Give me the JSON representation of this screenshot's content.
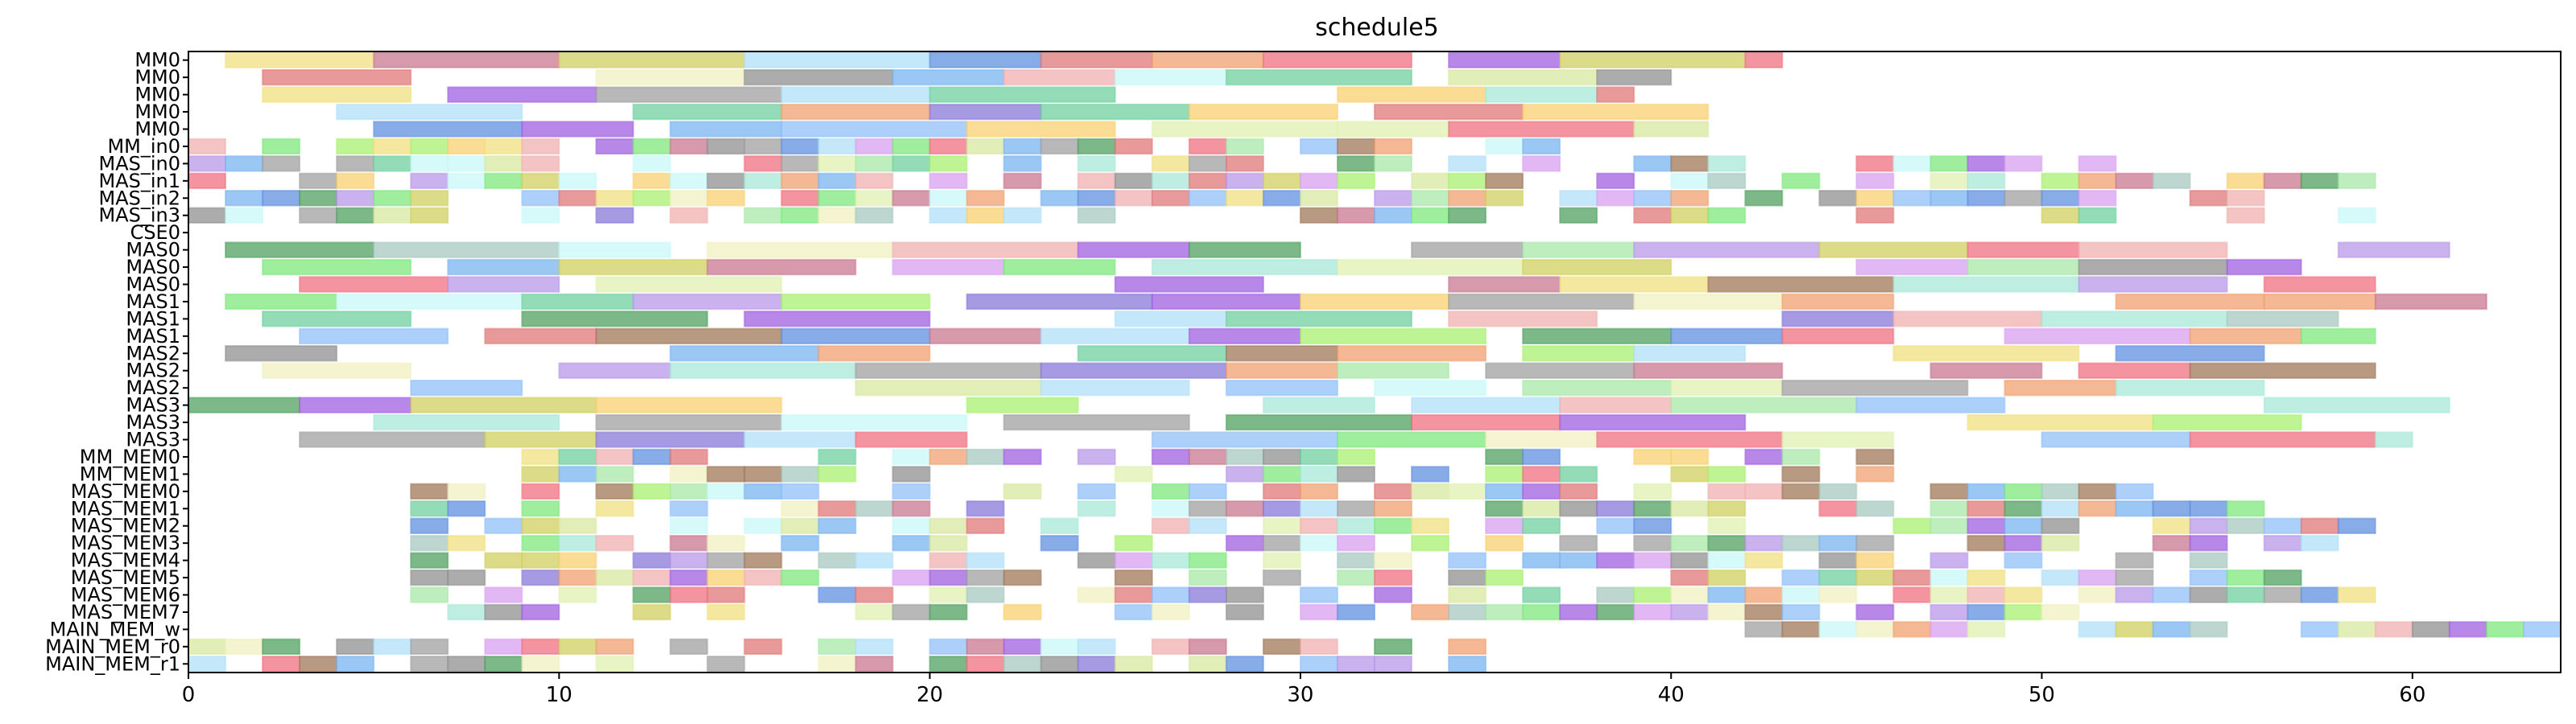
{
  "chart_data": {
    "type": "gantt",
    "title": "schedule5",
    "xlabel": "",
    "ylabel": "",
    "xlim": [
      0,
      64
    ],
    "x_ticks": [
      0,
      10,
      20,
      30,
      40,
      50,
      60
    ],
    "grid": false,
    "rows": [
      "MM0",
      "MM0",
      "MM0",
      "MM0",
      "MM0",
      "MM_in0",
      "MAS_in0",
      "MAS_in1",
      "MAS_in2",
      "MAS_in3",
      "CSE0",
      "MAS0",
      "MAS0",
      "MAS0",
      "MAS1",
      "MAS1",
      "MAS1",
      "MAS2",
      "MAS2",
      "MAS2",
      "MAS3",
      "MAS3",
      "MAS3",
      "MM_MEM0",
      "MM_MEM1",
      "MAS_MEM0",
      "MAS_MEM1",
      "MAS_MEM2",
      "MAS_MEM3",
      "MAS_MEM4",
      "MAS_MEM5",
      "MAS_MEM6",
      "MAS_MEM7",
      "MAIN_MEM_w",
      "MAIN_MEM_r0",
      "MAIN_MEM_r1"
    ],
    "palette": [
      "#7ee87e",
      "#a0785a",
      "#d8a0f0",
      "#7ab4f0",
      "#a8e8a8",
      "#c87890",
      "#8878d8",
      "#f0f0c0",
      "#f0b0b0",
      "#f8d070",
      "#90c0f8",
      "#a060e0",
      "#a8e8d8",
      "#a8f070",
      "#c8f8f8",
      "#d8e8a0",
      "#a8c8c0",
      "#b0e0f8",
      "#f0e080",
      "#b898e8",
      "#70d0a0",
      "#e07878",
      "#d0d060",
      "#a0a0a0",
      "#f07080",
      "#50a060",
      "#6090e0",
      "#f0a070",
      "#909090",
      "#e0f0b0"
    ]
  }
}
